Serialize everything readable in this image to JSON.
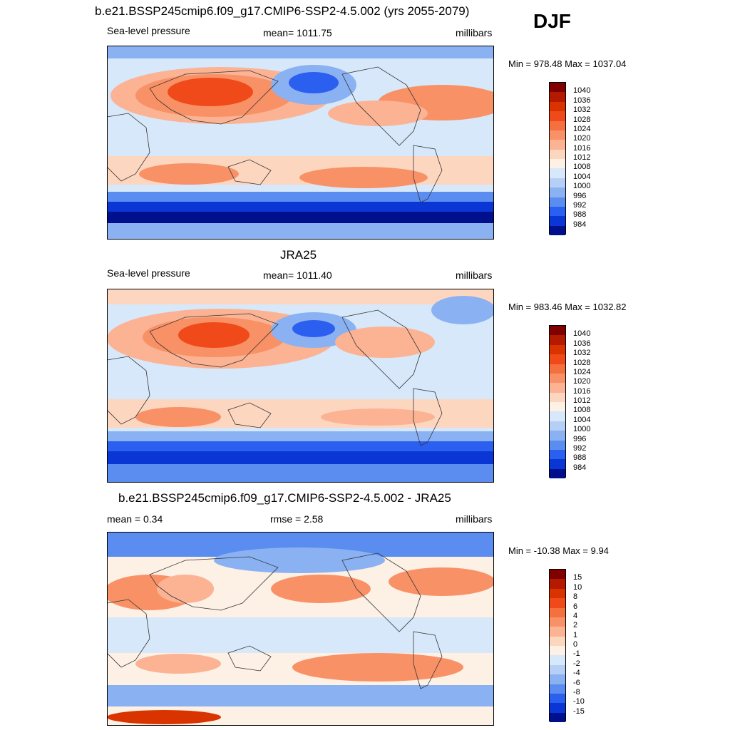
{
  "season": "DJF",
  "panels": [
    {
      "title": "b.e21.BSSP245cmip6.f09_g17.CMIP6-SSP2-4.5.002 (yrs 2055-2079)",
      "left_label": "Sea-level pressure",
      "center_label": "mean= 1011.75",
      "units": "millibars",
      "minmax": "Min = 978.48 Max = 1037.04"
    },
    {
      "title": "JRA25",
      "left_label": "Sea-level pressure",
      "center_label": "mean= 1011.40",
      "units": "millibars",
      "minmax": "Min = 983.46 Max = 1032.82"
    },
    {
      "title": "b.e21.BSSP245cmip6.f09_g17.CMIP6-SSP2-4.5.002 - JRA25",
      "left_label": "mean =   0.34",
      "center_label": "rmse =   2.58",
      "units": "millibars",
      "minmax": "Min = -10.38 Max =   9.94"
    }
  ],
  "colorbars": {
    "pressure": {
      "labels": [
        "1040",
        "1036",
        "1032",
        "1028",
        "1024",
        "1020",
        "1016",
        "1012",
        "1008",
        "1004",
        "1000",
        "996",
        "992",
        "988",
        "984"
      ],
      "colors": [
        "#800000",
        "#b31a00",
        "#d93300",
        "#f04a1a",
        "#f5703f",
        "#f99167",
        "#fbb394",
        "#fdd6c0",
        "#fdf0e4",
        "#d7e8fa",
        "#b5cff6",
        "#8ab2f2",
        "#5b8cf0",
        "#2b5ff0",
        "#0a36d6",
        "#000f8c"
      ]
    },
    "difference": {
      "labels": [
        "15",
        "10",
        "8",
        "6",
        "4",
        "2",
        "1",
        "0",
        "-1",
        "-2",
        "-4",
        "-6",
        "-8",
        "-10",
        "-15"
      ],
      "colors": [
        "#800000",
        "#b31a00",
        "#d93300",
        "#f04a1a",
        "#f5703f",
        "#f99167",
        "#fbb394",
        "#fdd6c0",
        "#fdf0e4",
        "#d7e8fa",
        "#b5cff6",
        "#8ab2f2",
        "#5b8cf0",
        "#2b5ff0",
        "#0a36d6",
        "#000f8c"
      ]
    }
  }
}
